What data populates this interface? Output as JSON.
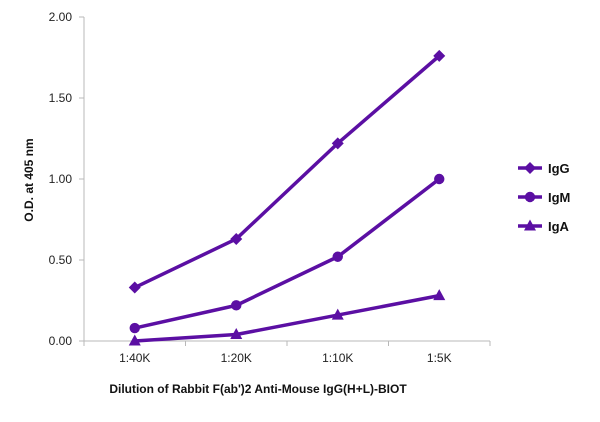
{
  "chart_data": {
    "type": "line",
    "categories": [
      "1:40K",
      "1:20K",
      "1:10K",
      "1:5K"
    ],
    "series": [
      {
        "name": "IgG",
        "marker": "diamond",
        "values": [
          0.33,
          0.63,
          1.22,
          1.76
        ]
      },
      {
        "name": "IgM",
        "marker": "circle",
        "values": [
          0.08,
          0.22,
          0.52,
          1.0
        ]
      },
      {
        "name": "IgA",
        "marker": "triangle",
        "values": [
          0.0,
          0.04,
          0.16,
          0.28
        ]
      }
    ],
    "xlabel": "Dilution of Rabbit F(ab')2 Anti-Mouse IgG(H+L)-BIOT",
    "ylabel": "O.D. at 405 nm",
    "ylim": [
      0,
      2
    ],
    "yticks": [
      0,
      0.5,
      1.0,
      1.5,
      2.0
    ],
    "ytick_labels": [
      "0.00",
      "0.50",
      "1.00",
      "1.50",
      "2.00"
    ],
    "grid": false,
    "legend": "right",
    "colors": {
      "series": "#5b0fa3",
      "axis": "#b8b8b8"
    }
  }
}
